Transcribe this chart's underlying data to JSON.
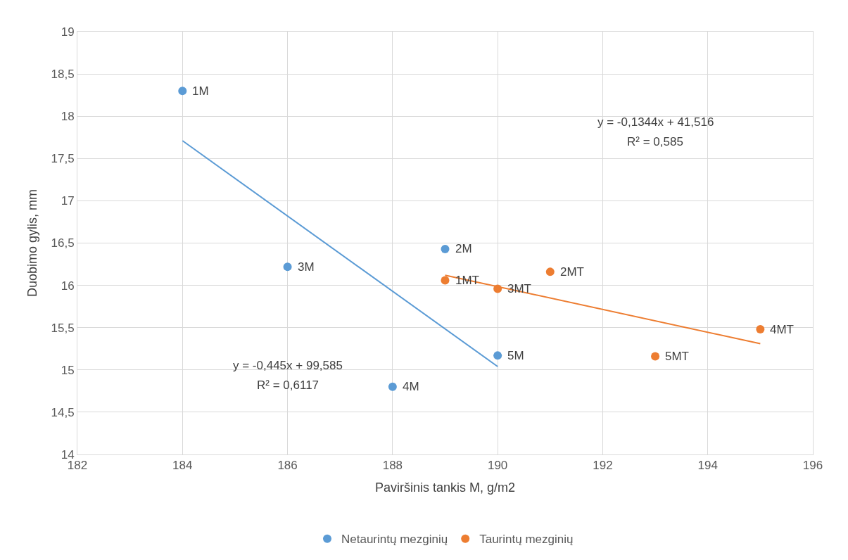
{
  "chart_data": {
    "type": "scatter",
    "xlabel": "Paviršinis tankis M, g/m2",
    "ylabel": "Duobimo gylis, mm",
    "xlim": [
      182,
      196
    ],
    "xticks": [
      182,
      184,
      186,
      188,
      190,
      192,
      194,
      196
    ],
    "ylim": [
      14,
      19
    ],
    "yticks": [
      14,
      {
        "value": 14.5,
        "label": "14,5"
      },
      15,
      {
        "value": 15.5,
        "label": "15,5"
      },
      16,
      {
        "value": 16.5,
        "label": "16,5"
      },
      17,
      {
        "value": 17.5,
        "label": "17,5"
      },
      18,
      {
        "value": 18.5,
        "label": "18,5"
      },
      19
    ],
    "grid": true,
    "legend": "bottom",
    "marker": "circle",
    "series": [
      {
        "name": "Netaurintų mezginių",
        "color": "#5b9bd5",
        "x": [
          184,
          189,
          186,
          188,
          190
        ],
        "values": [
          18.3,
          16.43,
          16.22,
          14.8,
          15.17
        ]
      },
      {
        "name": "Taurintų mezginių",
        "color": "#ed7d31",
        "x": [
          189,
          191,
          190,
          195,
          193
        ],
        "values": [
          16.06,
          16.16,
          15.96,
          15.48,
          15.16
        ]
      },
      {
        "type": "line",
        "marker": "none",
        "color": "#5b9bd5",
        "x": [
          184,
          190
        ],
        "values": [
          17.71,
          15.04
        ]
      },
      {
        "type": "line",
        "marker": "none",
        "color": "#ed7d31",
        "x": [
          189,
          195
        ],
        "values": [
          16.12,
          15.31
        ]
      }
    ],
    "annotations": [
      {
        "text": "1M",
        "x": 184,
        "y": 18.3
      },
      {
        "text": "2M",
        "x": 189,
        "y": 16.43
      },
      {
        "text": "3M",
        "x": 186,
        "y": 16.22
      },
      {
        "text": "4M",
        "x": 188,
        "y": 14.8
      },
      {
        "text": "5M",
        "x": 190,
        "y": 15.17
      },
      {
        "text": "1MT",
        "x": 189,
        "y": 16.06
      },
      {
        "text": "2MT",
        "x": 191,
        "y": 16.16
      },
      {
        "text": "3MT",
        "x": 190,
        "y": 15.96
      },
      {
        "text": "4MT",
        "x": 195,
        "y": 15.48
      },
      {
        "text": "5MT",
        "x": 193,
        "y": 15.16
      },
      "y = -0,1344x + 41,516",
      "R² = 0,585",
      "y = -0,445x + 99,585",
      "R² = 0,6117"
    ]
  }
}
